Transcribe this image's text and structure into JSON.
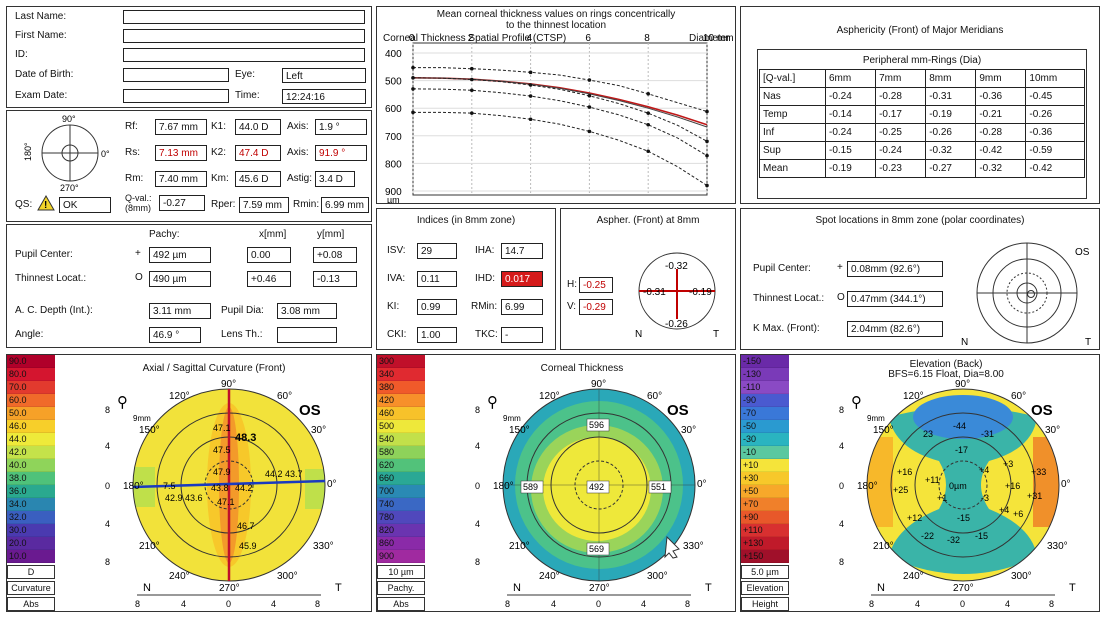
{
  "patient": {
    "last_name_label": "Last Name:",
    "first_name_label": "First Name:",
    "id_label": "ID:",
    "dob_label": "Date of Birth:",
    "exam_date_label": "Exam Date:",
    "eye_label": "Eye:",
    "eye_value": "Left",
    "time_label": "Time:",
    "time_value": "12:24:16"
  },
  "keratometry": {
    "angle_top": "90°",
    "angle_left": "180°",
    "angle_right": "0°",
    "angle_bottom": "270°",
    "rf_label": "Rf:",
    "rf_value": "7.67 mm",
    "k1_label": "K1:",
    "k1_value": "44.0 D",
    "axis1_label": "Axis:",
    "axis1_value": "1.9 °",
    "rs_label": "Rs:",
    "rs_value": "7.13 mm",
    "k2_label": "K2:",
    "k2_value": "47.4 D",
    "axis2_label": "Axis:",
    "axis2_value": "91.9 °",
    "rm_label": "Rm:",
    "rm_value": "7.40 mm",
    "km_label": "Km:",
    "km_value": "45.6 D",
    "astig_label": "Astig:",
    "astig_value": "3.4 D",
    "qs_label": "QS:",
    "qs_value": "OK",
    "qval_label_1": "Q-val.:",
    "qval_label_2": "(8mm)",
    "qval_value": "-0.27",
    "rper_label": "Rper:",
    "rper_value": "7.59 mm",
    "rmin_label": "Rmin:",
    "rmin_value": "6.99 mm"
  },
  "pachy": {
    "col_pachy": "Pachy:",
    "col_x": "x[mm]",
    "col_y": "y[mm]",
    "pupil_label": "Pupil Center:",
    "pupil_sym": "+",
    "pupil_pachy": "492 µm",
    "pupil_x": "0.00",
    "pupil_y": "+0.08",
    "thin_label": "Thinnest Locat.:",
    "thin_sym": "O",
    "thin_pachy": "490 µm",
    "thin_x": "+0.46",
    "thin_y": "-0.13",
    "acd_label": "A. C. Depth (Int.):",
    "acd_value": "3.11 mm",
    "pupil_dia_label": "Pupil Dia:",
    "pupil_dia_value": "3.08 mm",
    "angle_label": "Angle:",
    "angle_value": "46.9 °",
    "lens_label": "Lens Th.:",
    "lens_value": ""
  },
  "ctsp": {
    "title_1": "Mean corneal thickness values on rings concentrically",
    "title_2": "to the thinnest location",
    "subtitle": "Corneal Thickness Spatial Profile (CTSP)",
    "diameter_label": "Diameter",
    "x_ticks": [
      "0",
      "2",
      "4",
      "6",
      "8",
      "10 mm"
    ],
    "y_ticks": [
      "400",
      "500",
      "600",
      "700",
      "800",
      "900"
    ],
    "y_unit": "µm"
  },
  "chart_data": {
    "type": "line",
    "x": [
      0,
      1,
      2,
      3,
      4,
      5,
      6,
      7,
      8,
      9,
      10
    ],
    "xlim": [
      0,
      10
    ],
    "ylim": [
      400,
      900
    ],
    "series": [
      {
        "values": [
          490,
          491,
          495,
          502,
          512,
          526,
          545,
          568,
          595,
          625,
          660
        ],
        "color": "#c01818",
        "style": "solid"
      },
      {
        "values": [
          490,
          491,
          495,
          502,
          513,
          528,
          548,
          572,
          600,
          632,
          668
        ],
        "color": "#444",
        "style": "solid"
      },
      {
        "values": [
          490,
          491,
          496,
          504,
          516,
          532,
          555,
          583,
          618,
          662,
          720
        ],
        "color": "#222",
        "style": "dashed"
      },
      {
        "values": [
          530,
          531,
          535,
          544,
          556,
          573,
          596,
          624,
          660,
          708,
          772
        ],
        "color": "#222",
        "style": "dashed"
      },
      {
        "values": [
          615,
          615,
          618,
          627,
          640,
          658,
          684,
          716,
          756,
          812,
          880
        ],
        "color": "#222",
        "style": "dashed"
      },
      {
        "values": [
          453,
          453,
          457,
          462,
          470,
          480,
          498,
          518,
          548,
          580,
          612
        ],
        "color": "#222",
        "style": "dashed"
      }
    ]
  },
  "asphericity": {
    "title": "Asphericity (Front) of Major Meridians",
    "sub": "Peripheral mm-Rings (Dia)",
    "headers": [
      "[Q-val.]",
      "6mm",
      "7mm",
      "8mm",
      "9mm",
      "10mm"
    ],
    "rows": [
      [
        "Nas",
        "-0.24",
        "-0.28",
        "-0.31",
        "-0.36",
        "-0.45"
      ],
      [
        "Temp",
        "-0.14",
        "-0.17",
        "-0.19",
        "-0.21",
        "-0.26"
      ],
      [
        "Inf",
        "-0.24",
        "-0.25",
        "-0.26",
        "-0.28",
        "-0.36"
      ],
      [
        "Sup",
        "-0.15",
        "-0.24",
        "-0.32",
        "-0.42",
        "-0.59"
      ],
      [
        "Mean",
        "-0.19",
        "-0.23",
        "-0.27",
        "-0.32",
        "-0.42"
      ]
    ]
  },
  "indices": {
    "title": "Indices (in 8mm zone)",
    "isv_label": "ISV:",
    "isv_value": "29",
    "iha_label": "IHA:",
    "iha_value": "14.7",
    "iva_label": "IVA:",
    "iva_value": "0.11",
    "ihd_label": "IHD:",
    "ihd_value": "0.017",
    "ki_label": "KI:",
    "ki_value": "0.99",
    "rmin_label": "RMin:",
    "rmin_value": "6.99",
    "cki_label": "CKI:",
    "cki_value": "1.00",
    "tkc_label": "TKC:",
    "tkc_value": "-"
  },
  "aspher8": {
    "title": "Aspher. (Front) at 8mm",
    "h_label": "H:",
    "h_value": "-0.25",
    "v_label": "V:",
    "v_value": "-0.29",
    "top": "-0.32",
    "left": "-0.31",
    "right": "-0.19",
    "bottom": "-0.26",
    "n": "N",
    "t": "T"
  },
  "spot": {
    "title": "Spot locations in 8mm zone (polar coordinates)",
    "pupil_label": "Pupil Center:",
    "pupil_sym": "+",
    "pupil_value": "0.08mm (92.6°)",
    "thin_label": "Thinnest Locat.:",
    "thin_sym": "O",
    "thin_value": "0.47mm (344.1°)",
    "kmax_label": "K Max. (Front):",
    "kmax_value": "2.04mm (82.6°)",
    "os": "OS",
    "n": "N",
    "t": "T"
  },
  "axial": {
    "title": "Axial / Sagittal Curvature (Front)",
    "scale": [
      "90.0",
      "80.0",
      "70.0",
      "60.0",
      "50.0",
      "46.0",
      "44.0",
      "42.0",
      "40.0",
      "38.0",
      "36.0",
      "34.0",
      "32.0",
      "30.0",
      "20.0",
      "10.0"
    ],
    "scale_colors": [
      "#b0002a",
      "#d4152f",
      "#e23a2e",
      "#f06a2a",
      "#f6a128",
      "#f7cf2a",
      "#eeea3a",
      "#c4e24a",
      "#8fd45a",
      "#4fc27a",
      "#2aa98f",
      "#2a86b0",
      "#3a5fc0",
      "#4a3ab0",
      "#5a2aa0",
      "#6a1a90"
    ],
    "unit": "D",
    "foot1": "Curvature",
    "foot2": "Abs",
    "zoom": "9mm",
    "os": "OS",
    "ang_90": "90°",
    "ang_120": "120°",
    "ang_60": "60°",
    "ang_150": "150°",
    "ang_30": "30°",
    "ang_180": "180°",
    "ang_0": "0°",
    "ang_210": "210°",
    "ang_330": "330°",
    "ang_240": "240°",
    "ang_300": "300°",
    "ang_270": "270°",
    "n": "N",
    "t": "T",
    "y_ticks": [
      "8",
      "4",
      "0",
      "4",
      "8"
    ],
    "x_ticks": [
      "8",
      "4",
      "0",
      "4",
      "8"
    ],
    "vals": [
      "47.1",
      "48.3",
      "47.5",
      "47.9",
      "44.2",
      "43.7",
      "7.5",
      "43.8",
      "42.9",
      "43.6",
      "44.2",
      "47.1",
      "46.7",
      "45.9"
    ]
  },
  "thickness": {
    "title": "Corneal Thickness",
    "scale": [
      "300",
      "340",
      "380",
      "420",
      "460",
      "500",
      "540",
      "580",
      "620",
      "660",
      "700",
      "740",
      "780",
      "820",
      "860",
      "900"
    ],
    "scale_colors": [
      "#c0102a",
      "#e02a30",
      "#f05a2a",
      "#f7902a",
      "#f7c22a",
      "#eee83a",
      "#c2e04a",
      "#8ed25a",
      "#52c27a",
      "#2aa895",
      "#2a8ab4",
      "#3a68c4",
      "#5048bc",
      "#6a34b0",
      "#8a2aa8",
      "#a02aa0"
    ],
    "unit": "10 µm",
    "foot1": "Pachy.",
    "foot2": "Abs",
    "zoom": "9mm",
    "os": "OS",
    "ang_90": "90°",
    "ang_120": "120°",
    "ang_60": "60°",
    "ang_150": "150°",
    "ang_30": "30°",
    "ang_180": "180°",
    "ang_0": "0°",
    "ang_210": "210°",
    "ang_330": "330°",
    "ang_240": "240°",
    "ang_300": "300°",
    "ang_270": "270°",
    "n": "N",
    "t": "T",
    "v_top": "596",
    "v_left": "589",
    "v_center": "492",
    "v_right": "551",
    "v_bottom": "569"
  },
  "elevation": {
    "title_1": "Elevation (Back)",
    "title_2": "BFS=6.15 Float, Dia=8.00",
    "scale": [
      "-150",
      "-130",
      "-110",
      "-90",
      "-70",
      "-50",
      "-30",
      "-10",
      "+10",
      "+30",
      "+50",
      "+70",
      "+90",
      "+110",
      "+130",
      "+150"
    ],
    "scale_colors": [
      "#6a2aa8",
      "#7a3ab8",
      "#8a4ac4",
      "#4a5ad0",
      "#3a78d8",
      "#2a9ad0",
      "#2ab4c0",
      "#5ac8a0",
      "#f5e43a",
      "#f7c82a",
      "#f7a82a",
      "#f0802a",
      "#e8582a",
      "#d83030",
      "#c01a2a",
      "#a0102a"
    ],
    "unit": "5.0 µm",
    "foot1": "Elevation",
    "foot2": "Height",
    "zoom": "9mm",
    "os": "OS",
    "ang_90": "90°",
    "ang_120": "120°",
    "ang_60": "60°",
    "ang_150": "150°",
    "ang_30": "30°",
    "ang_180": "180°",
    "ang_0": "0°",
    "ang_210": "210°",
    "ang_330": "330°",
    "ang_240": "240°",
    "ang_300": "300°",
    "ang_270": "270°",
    "n": "N",
    "t": "T",
    "vals": [
      "23",
      "-44",
      "-31",
      "-17",
      "+16",
      "+11",
      "+4",
      "+3",
      "+33",
      "+25",
      "0µm",
      "+16",
      "+31",
      "+1",
      "-3",
      "+4",
      "+6",
      "+12",
      "-15",
      "-22",
      "-32",
      "-15"
    ]
  }
}
